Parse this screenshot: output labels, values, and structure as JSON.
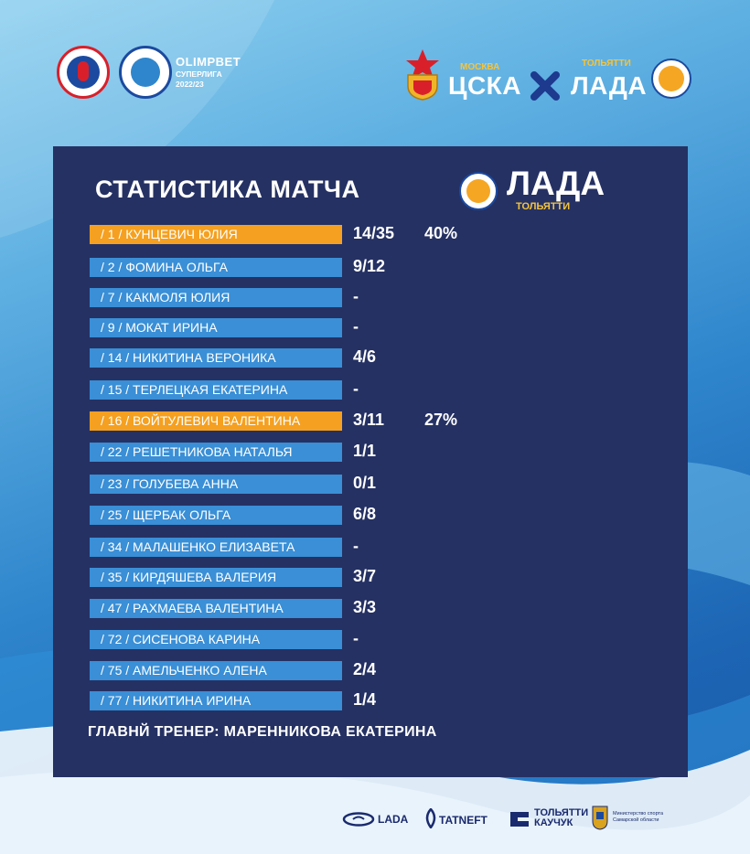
{
  "header": {
    "league_title": "OLIMPBET",
    "league_subtitle_1": "СУПЕРЛИГА",
    "league_subtitle_2": "2022/23",
    "home_city": "МОСКВА",
    "home_team": "ЦСКА",
    "away_city": "ТОЛЬЯТТИ",
    "away_team": "ЛАДА"
  },
  "panel": {
    "title": "СТАТИСТИКА МАТЧА",
    "team": "ЛАДА",
    "team_city": "ТОЛЬЯТТИ",
    "players": [
      {
        "name": "/ 1 / КУНЦЕВИЧ ЮЛИЯ",
        "score": "14/35",
        "pct": "40%",
        "highlight": true
      },
      {
        "name": "/ 2 / ФОМИНА ОЛЬГА",
        "score": "9/12",
        "pct": "",
        "highlight": false
      },
      {
        "name": "/ 7 / КАКМОЛЯ ЮЛИЯ",
        "score": "-",
        "pct": "",
        "highlight": false
      },
      {
        "name": "/  9 / МОКАТ ИРИНА",
        "score": "-",
        "pct": "",
        "highlight": false
      },
      {
        "name": "/ 14 / НИКИТИНА ВЕРОНИКА",
        "score": "4/6",
        "pct": "",
        "highlight": false
      },
      {
        "name": "/ 15 / ТЕРЛЕЦКАЯ ЕКАТЕРИНА",
        "score": "-",
        "pct": "",
        "highlight": false
      },
      {
        "name": "/ 16 / ВОЙТУЛЕВИЧ ВАЛЕНТИНА",
        "score": "3/11",
        "pct": "27%",
        "highlight": true
      },
      {
        "name": "/ 22 / РЕШЕТНИКОВА НАТАЛЬЯ",
        "score": "1/1",
        "pct": "",
        "highlight": false
      },
      {
        "name": "/ 23 / ГОЛУБЕВА АННА",
        "score": "0/1",
        "pct": "",
        "highlight": false
      },
      {
        "name": "/ 25 / ЩЕРБАК ОЛЬГА",
        "score": "6/8",
        "pct": "",
        "highlight": false
      },
      {
        "name": "/ 34 / МАЛАШЕНКО ЕЛИЗАВЕТА",
        "score": "-",
        "pct": "",
        "highlight": false
      },
      {
        "name": "/ 35 / КИРДЯШЕВА ВАЛЕРИЯ",
        "score": "3/7",
        "pct": "",
        "highlight": false
      },
      {
        "name": "/ 47 / РАХМАЕВА ВАЛЕНТИНА",
        "score": "3/3",
        "pct": "",
        "highlight": false
      },
      {
        "name": "/ 72 / СИСЕНОВА КАРИНА",
        "score": "-",
        "pct": "",
        "highlight": false
      },
      {
        "name": "/ 75 / АМЕЛЬЧЕНКО АЛЕНА",
        "score": "2/4",
        "pct": "",
        "highlight": false
      },
      {
        "name": "/ 77 / НИКИТИНА ИРИНА",
        "score": "1/4",
        "pct": "",
        "highlight": false
      }
    ],
    "coach": "ГЛАВНЙ ТРЕНЕР: МАРЕННИКОВА ЕКАТЕРИНА"
  },
  "sponsors": {
    "lada": "LADA",
    "tatneft": "TATNEFT",
    "kauchuk_1": "ТОЛЬЯТТИ",
    "kauchuk_2": "КАУЧУК",
    "ministry_1": "Министерство спорта",
    "ministry_2": "Самарской области"
  },
  "colors": {
    "panel": "#253163",
    "row_bar": "#3a8fd6",
    "row_highlight": "#f5a020",
    "accent_gold": "#f6c43a"
  },
  "icons": [
    "federation-logo-icon",
    "league-logo-icon",
    "cska-emblem-icon",
    "versus-x-icon",
    "lada-club-logo-icon",
    "lada-car-logo-icon",
    "tatneft-logo-icon",
    "kauchuk-logo-icon",
    "ministry-emblem-icon"
  ]
}
